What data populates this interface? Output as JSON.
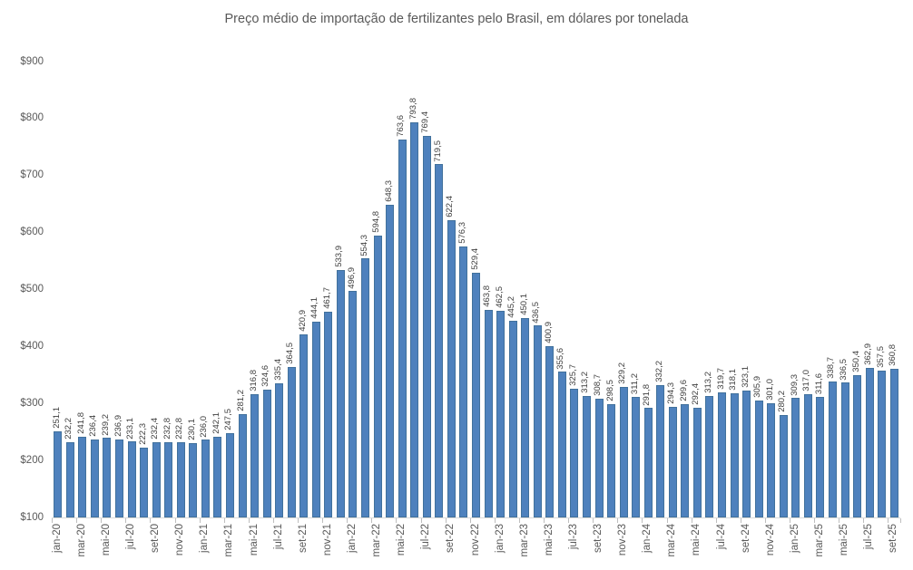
{
  "chart_data": {
    "type": "bar",
    "title": "Preço médio de importação de fertilizantes pelo Brasil, em dólares por tonelada",
    "xlabel": "",
    "ylabel": "",
    "ylim": [
      100,
      900
    ],
    "ytick_step": 100,
    "y_tick_labels": [
      "$100",
      "$200",
      "$300",
      "$400",
      "$500",
      "$600",
      "$700",
      "$800",
      "$900"
    ],
    "x_tick_interval": 2,
    "grid": false,
    "legend": null,
    "bar_color": "#4e81bd",
    "bar_border_color": "#41719c",
    "axis_line_color": "#d9d9d9",
    "tick_color": "#bfbfbf",
    "title_color": "#595959",
    "axis_label_color": "#595959",
    "value_label_color": "#3f3f3f",
    "decimal_separator": ",",
    "categories": [
      "jan-20",
      "fev-20",
      "mar-20",
      "abr-20",
      "mai-20",
      "jun-20",
      "jul-20",
      "ago-20",
      "set-20",
      "out-20",
      "nov-20",
      "dez-20",
      "jan-21",
      "fev-21",
      "mar-21",
      "abr-21",
      "mai-21",
      "jun-21",
      "jul-21",
      "ago-21",
      "set-21",
      "out-21",
      "nov-21",
      "dez-21",
      "jan-22",
      "fev-22",
      "mar-22",
      "abr-22",
      "mai-22",
      "jun-22",
      "jul-22",
      "ago-22",
      "set-22",
      "out-22",
      "nov-22",
      "dez-22",
      "jan-23",
      "fev-23",
      "mar-23",
      "abr-23",
      "mai-23",
      "jun-23",
      "jul-23",
      "ago-23",
      "set-23",
      "out-23",
      "nov-23",
      "dez-23",
      "jan-24",
      "fev-24",
      "mar-24",
      "abr-24",
      "mai-24",
      "jun-24",
      "jul-24",
      "ago-24",
      "set-24",
      "out-24",
      "nov-24",
      "dez-24",
      "jan-25",
      "fev-25",
      "mar-25",
      "abr-25",
      "mai-25",
      "jun-25",
      "jul-25",
      "ago-25",
      "set-25"
    ],
    "values": [
      251.1,
      232.2,
      241.8,
      236.4,
      239.2,
      236.9,
      233.1,
      222.3,
      232.4,
      232.8,
      232.8,
      230.1,
      236.0,
      242.1,
      247.5,
      281.2,
      316.8,
      324.6,
      335.4,
      364.5,
      420.9,
      444.1,
      461.7,
      533.9,
      496.9,
      554.3,
      594.8,
      648.3,
      763.6,
      793.8,
      769.4,
      719.5,
      622.4,
      576.3,
      529.4,
      463.8,
      462.5,
      445.2,
      450.1,
      436.5,
      400.9,
      355.6,
      325.7,
      313.2,
      308.7,
      298.5,
      329.2,
      311.2,
      291.8,
      332.2,
      294.3,
      299.6,
      292.4,
      313.2,
      319.7,
      318.1,
      323.1,
      305.9,
      301.0,
      280.2,
      309.3,
      317.0,
      311.6,
      338.7,
      336.5,
      350.4,
      362.9,
      357.5,
      360.8
    ],
    "value_labels": [
      "251,1",
      "232,2",
      "241,8",
      "236,4",
      "239,2",
      "236,9",
      "233,1",
      "222,3",
      "232,4",
      "232,8",
      "232,8",
      "230,1",
      "236,0",
      "242,1",
      "247,5",
      "281,2",
      "316,8",
      "324,6",
      "335,4",
      "364,5",
      "420,9",
      "444,1",
      "461,7",
      "533,9",
      "496,9",
      "554,3",
      "594,8",
      "648,3",
      "763,6",
      "793,8",
      "769,4",
      "719,5",
      "622,4",
      "576,3",
      "529,4",
      "463,8",
      "462,5",
      "445,2",
      "450,1",
      "436,5",
      "400,9",
      "355,6",
      "325,7",
      "313,2",
      "308,7",
      "298,5",
      "329,2",
      "311,2",
      "291,8",
      "332,2",
      "294,3",
      "299,6",
      "292,4",
      "313,2",
      "319,7",
      "318,1",
      "323,1",
      "305,9",
      "301,0",
      "280,2",
      "309,3",
      "317,0",
      "311,6",
      "338,7",
      "336,5",
      "350,4",
      "362,9",
      "357,5",
      "360,8"
    ]
  }
}
